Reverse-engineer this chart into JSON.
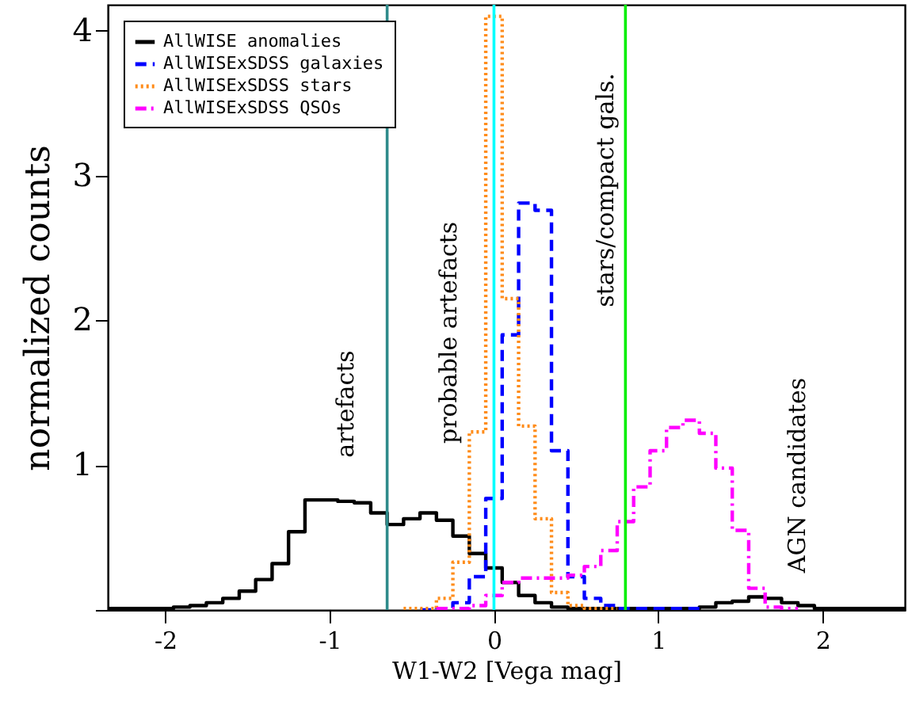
{
  "chart_data": {
    "type": "step",
    "xlabel": "W1-W2 [Vega mag]",
    "ylabel": "normalized counts",
    "xlim": [
      -2.35,
      2.5
    ],
    "xticks": [
      -2,
      -1,
      0,
      1,
      2
    ],
    "ylim": [
      0,
      4.18
    ],
    "yticks": [
      {
        "value": 0,
        "label": null
      },
      1,
      2,
      3,
      4
    ],
    "grid": false,
    "legend": "top left",
    "series": [
      {
        "name": "AllWISE anomalies",
        "color": "#000000",
        "line_style": "solid",
        "x": [
          -2.35,
          -2.05,
          -1.95,
          -1.85,
          -1.75,
          -1.65,
          -1.55,
          -1.45,
          -1.35,
          -1.25,
          -1.15,
          -1.05,
          -0.95,
          -0.85,
          -0.75,
          -0.65,
          -0.55,
          -0.45,
          -0.35,
          -0.25,
          -0.15,
          -0.05,
          0.05,
          0.15,
          0.25,
          0.35,
          0.45,
          1.25,
          1.35,
          1.45,
          1.55,
          1.65,
          1.75,
          1.85,
          1.95,
          2.5
        ],
        "values": [
          0.01,
          0.01,
          0.02,
          0.03,
          0.05,
          0.08,
          0.13,
          0.21,
          0.32,
          0.54,
          0.76,
          0.76,
          0.75,
          0.74,
          0.67,
          0.59,
          0.63,
          0.67,
          0.62,
          0.51,
          0.39,
          0.29,
          0.19,
          0.1,
          0.05,
          0.02,
          0.01,
          0.02,
          0.05,
          0.06,
          0.09,
          0.08,
          0.05,
          0.03,
          0.01,
          0.01
        ]
      },
      {
        "name": "AllWISExSDSS galaxies",
        "color": "#0000ff",
        "line_style": "dashed",
        "x": [
          -0.45,
          -0.35,
          -0.25,
          -0.15,
          -0.05,
          0.05,
          0.15,
          0.25,
          0.35,
          0.45,
          0.55,
          0.65,
          0.75,
          1.25
        ],
        "values": [
          0,
          0.01,
          0.05,
          0.23,
          0.77,
          1.9,
          2.81,
          2.76,
          1.1,
          0.23,
          0.08,
          0.03,
          0.01,
          0.01
        ]
      },
      {
        "name": "AllWISExSDSS stars",
        "color": "#ff8c1a",
        "line_style": "dotted",
        "x": [
          -0.55,
          -0.35,
          -0.25,
          -0.15,
          -0.05,
          0.05,
          0.15,
          0.25,
          0.35,
          0.45,
          0.55,
          0.75
        ],
        "values": [
          0.01,
          0.08,
          0.33,
          1.23,
          4.1,
          2.15,
          1.27,
          0.63,
          0.12,
          0.03,
          0.01,
          0.01
        ]
      },
      {
        "name": "AllWISExSDSS QSOs",
        "color": "#ff00ff",
        "line_style": "dashdot",
        "x": [
          -0.35,
          -0.15,
          -0.05,
          0.05,
          0.15,
          0.45,
          0.55,
          0.65,
          0.75,
          0.85,
          0.95,
          1.05,
          1.15,
          1.25,
          1.35,
          1.45,
          1.55,
          1.65,
          1.75,
          1.85
        ],
        "values": [
          0.01,
          0.03,
          0.1,
          0.19,
          0.22,
          0.24,
          0.3,
          0.41,
          0.61,
          0.85,
          1.1,
          1.26,
          1.31,
          1.22,
          0.98,
          0.55,
          0.15,
          0.02,
          0.01,
          0.01
        ]
      }
    ],
    "ref_lines": [
      {
        "axis": "x",
        "value": -0.65,
        "color": "#2e8b8b"
      },
      {
        "axis": "x",
        "value": 0,
        "color": "#00ffff"
      },
      {
        "axis": "x",
        "value": 0.8,
        "color": "#00ee00"
      }
    ],
    "annotations": [
      "artefacts",
      "probable artefacts",
      "stars/compact gals.",
      "AGN candidates"
    ]
  }
}
